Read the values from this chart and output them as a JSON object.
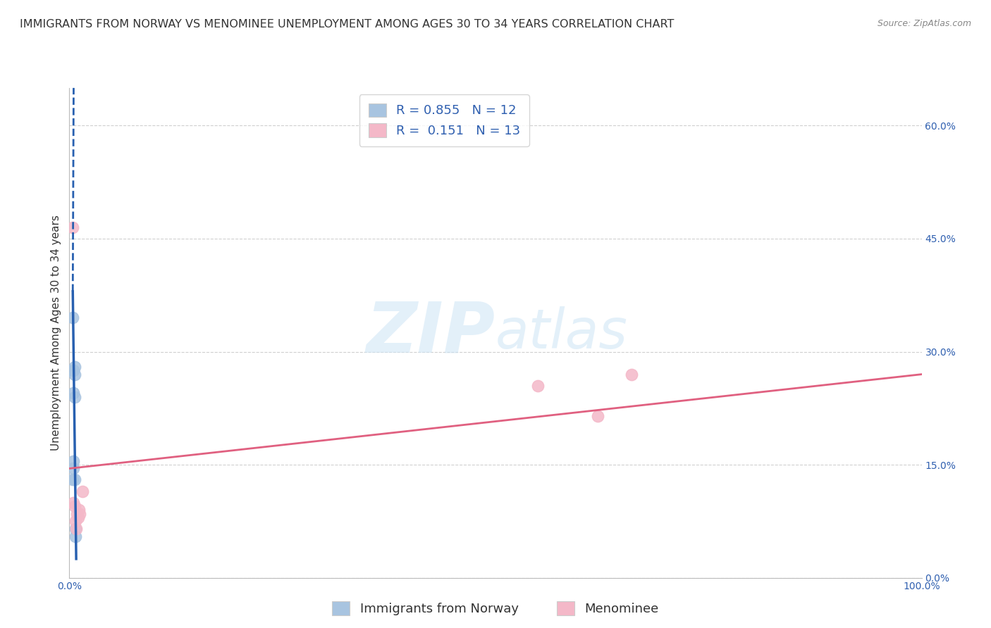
{
  "title": "IMMIGRANTS FROM NORWAY VS MENOMINEE UNEMPLOYMENT AMONG AGES 30 TO 34 YEARS CORRELATION CHART",
  "source": "Source: ZipAtlas.com",
  "ylabel": "Unemployment Among Ages 30 to 34 years",
  "xlim": [
    0,
    1.0
  ],
  "ylim": [
    0.0,
    0.65
  ],
  "norway_R": "0.855",
  "norway_N": "12",
  "menominee_R": "0.151",
  "menominee_N": "13",
  "norway_color": "#a8c4e0",
  "menominee_color": "#f4b8c8",
  "norway_line_color": "#2860b0",
  "menominee_line_color": "#e06080",
  "norway_points_x": [
    0.004,
    0.004,
    0.005,
    0.005,
    0.005,
    0.005,
    0.006,
    0.006,
    0.006,
    0.006,
    0.007,
    0.007
  ],
  "norway_points_y": [
    0.345,
    0.13,
    0.275,
    0.245,
    0.155,
    0.145,
    0.28,
    0.27,
    0.24,
    0.13,
    0.065,
    0.055
  ],
  "menominee_points_x": [
    0.004,
    0.005,
    0.006,
    0.007,
    0.008,
    0.009,
    0.01,
    0.011,
    0.012,
    0.015,
    0.55,
    0.62,
    0.66
  ],
  "menominee_points_y": [
    0.465,
    0.1,
    0.095,
    0.075,
    0.065,
    0.085,
    0.08,
    0.09,
    0.085,
    0.115,
    0.255,
    0.215,
    0.27
  ],
  "norway_trend_x1": 0.004,
  "norway_trend_y1": 0.38,
  "norway_trend_x2": 0.008,
  "norway_trend_y2": 0.025,
  "norway_trend_ext_x1": 0.004,
  "norway_trend_ext_y1": 0.38,
  "norway_trend_ext_x2": 0.005,
  "norway_trend_ext_y2": 0.65,
  "menominee_trend_x1": 0.0,
  "menominee_trend_y1": 0.145,
  "menominee_trend_x2": 1.0,
  "menominee_trend_y2": 0.27,
  "ytick_vals": [
    0.0,
    0.15,
    0.3,
    0.45,
    0.6
  ],
  "ytick_labels": [
    "0.0%",
    "15.0%",
    "30.0%",
    "45.0%",
    "60.0%"
  ],
  "grid_color": "#d0d0d0",
  "background_color": "#ffffff",
  "title_fontsize": 11.5,
  "axis_label_fontsize": 11,
  "tick_fontsize": 10,
  "legend_fontsize": 13,
  "source_fontsize": 9
}
